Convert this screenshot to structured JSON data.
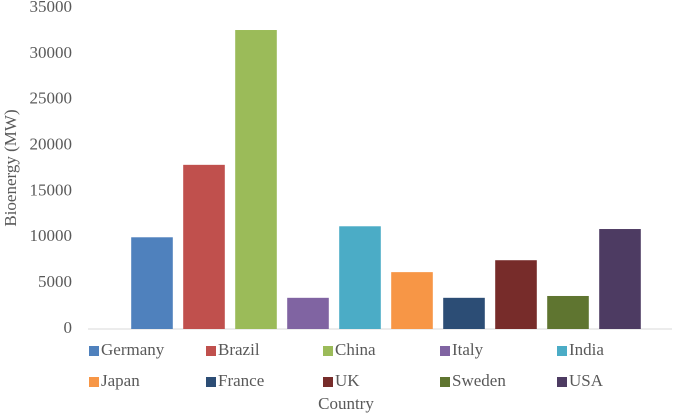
{
  "chart_data": {
    "type": "bar",
    "x_label": "Country",
    "y_label": "Bioenergy (MW)",
    "categories": [
      "Germany",
      "Brazil",
      "China",
      "Italy",
      "India",
      "Japan",
      "France",
      "UK",
      "Sweden",
      "USA"
    ],
    "values": [
      10000,
      17900,
      32600,
      3400,
      11200,
      6200,
      3400,
      7500,
      3600,
      10900
    ],
    "colors": [
      "#4f81bd",
      "#c0504d",
      "#9bbb59",
      "#8064a2",
      "#4bacc6",
      "#f79646",
      "#2c4d75",
      "#772c2a",
      "#5f7530",
      "#4d3b62"
    ],
    "ylim": [
      0,
      35000
    ],
    "yticks": [
      0,
      5000,
      10000,
      15000,
      20000,
      25000,
      30000,
      35000
    ],
    "grid": false,
    "legend": "bottom"
  }
}
